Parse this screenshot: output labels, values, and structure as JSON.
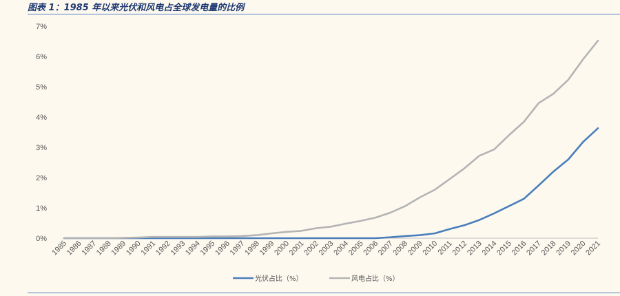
{
  "figure": {
    "title": "图表 1：1985 年以来光伏和风电占全球发电量的比例"
  },
  "chart_data": {
    "type": "line",
    "title": "图表 1：1985 年以来光伏和风电占全球发电量的比例",
    "xlabel": "",
    "ylabel": "",
    "ylim": [
      0,
      7
    ],
    "yticks": [
      "0%",
      "1%",
      "2%",
      "3%",
      "4%",
      "5%",
      "6%",
      "7%"
    ],
    "grid": false,
    "legend_position": "bottom",
    "x": [
      "1985",
      "1986",
      "1987",
      "1988",
      "1989",
      "1990",
      "1991",
      "1992",
      "1993",
      "1994",
      "1995",
      "1996",
      "1997",
      "1998",
      "1999",
      "2000",
      "2001",
      "2002",
      "2003",
      "2004",
      "2005",
      "2006",
      "2007",
      "2008",
      "2009",
      "2010",
      "2011",
      "2012",
      "2013",
      "2014",
      "2015",
      "2016",
      "2017",
      "2018",
      "2019",
      "2020",
      "2021"
    ],
    "series": [
      {
        "name": "光伏占比（%）",
        "color": "#4a7ebb",
        "values": [
          0,
          0,
          0,
          0,
          0,
          0,
          0,
          0,
          0,
          0,
          0,
          0,
          0,
          0,
          0,
          0,
          0,
          0,
          0,
          0,
          0,
          0,
          0.03,
          0.07,
          0.1,
          0.16,
          0.3,
          0.43,
          0.6,
          0.82,
          1.06,
          1.3,
          1.74,
          2.2,
          2.6,
          3.18,
          3.63
        ]
      },
      {
        "name": "风电占比（%）",
        "color": "#b4b4b4",
        "values": [
          0,
          0,
          0,
          0,
          0.01,
          0.02,
          0.04,
          0.04,
          0.04,
          0.04,
          0.06,
          0.06,
          0.07,
          0.1,
          0.16,
          0.21,
          0.24,
          0.33,
          0.38,
          0.48,
          0.57,
          0.68,
          0.84,
          1.06,
          1.35,
          1.6,
          1.95,
          2.31,
          2.72,
          2.93,
          3.4,
          3.84,
          4.46,
          4.77,
          5.23,
          5.91,
          6.52
        ]
      }
    ]
  }
}
